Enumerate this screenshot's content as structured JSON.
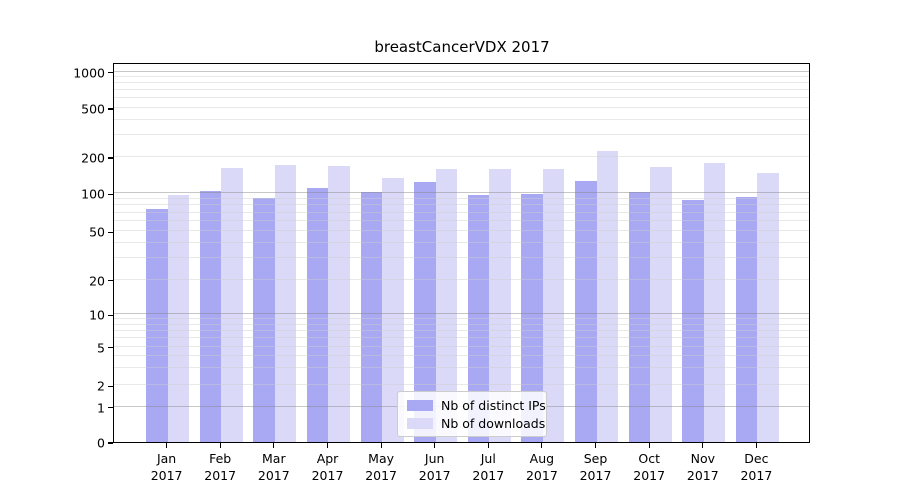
{
  "chart_data": {
    "type": "bar",
    "title": "breastCancerVDX 2017",
    "categories": [
      "Jan",
      "Feb",
      "Mar",
      "Apr",
      "May",
      "Jun",
      "Jul",
      "Aug",
      "Sep",
      "Oct",
      "Nov",
      "Dec"
    ],
    "x_sub_label": "2017",
    "series": [
      {
        "name": "Nb of distinct IPs",
        "color": "#a9a9f3",
        "values": [
          75,
          105,
          91,
          110,
          103,
          123,
          97,
          99,
          127,
          102,
          88,
          94
        ]
      },
      {
        "name": "Nb of downloads",
        "color": "#dadaf8",
        "values": [
          97,
          162,
          171,
          169,
          135,
          160,
          158,
          159,
          222,
          165,
          178,
          147
        ]
      }
    ],
    "xlabel": "",
    "ylabel": "",
    "yticks": [
      0,
      1,
      2,
      5,
      10,
      20,
      50,
      100,
      200,
      500,
      1000
    ],
    "ylim": [
      0,
      1200
    ],
    "scale": "symlog",
    "grid": true,
    "legend_position": "lower center",
    "axis_color": "#000000",
    "background_color": "#ffffff",
    "scale_anchors": {
      "values": [
        0,
        1,
        2,
        5,
        10,
        20,
        50,
        100,
        200,
        500,
        1000
      ],
      "fractions": [
        0.0,
        0.093,
        0.149,
        0.251,
        0.336,
        0.427,
        0.555,
        0.655,
        0.75,
        0.879,
        0.975
      ]
    },
    "minor_grid_values": [
      2,
      3,
      4,
      5,
      6,
      7,
      8,
      9,
      20,
      30,
      40,
      50,
      60,
      70,
      80,
      90,
      200,
      300,
      400,
      500,
      600,
      700,
      800,
      900
    ],
    "major_grid_values": [
      1,
      10,
      100,
      1000
    ]
  }
}
